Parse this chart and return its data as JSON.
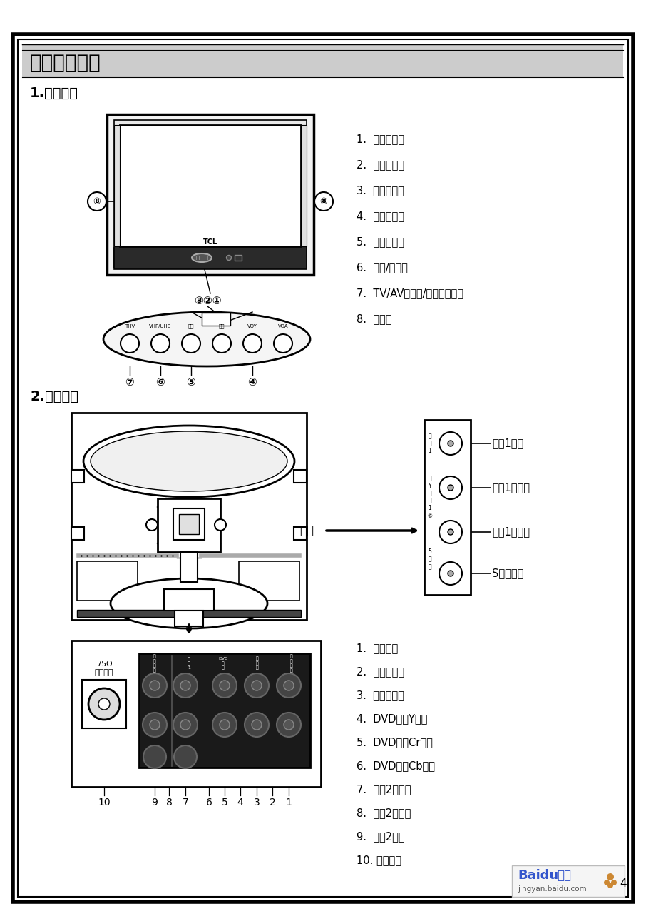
{
  "page_bg": "#ffffff",
  "title_section": "五、外观图解",
  "section1": "1.主机面板",
  "section2": "2.主机背板",
  "panel_labels": [
    "1.  电源开关键",
    "2.  待机指示灯",
    "3.  遥控接收窗",
    "4.  节目选择键",
    "5.  音量选择键",
    "6.  菜单/频台键",
    "7.  TV/AV（电视/视频）选择键",
    "8.  扬声器"
  ],
  "back_labels_side": [
    "视频1输入",
    "音频1左输入",
    "音频1右输入",
    "S端子输入"
  ],
  "back_labels_bottom": [
    "1.  视频输出",
    "2.  音频右输出",
    "3.  音频左输出",
    "4.  DVD分量Y输入",
    "5.  DVD分量Cr输入",
    "6.  DVD分量Cb输入",
    "7.  音频2右输入",
    "8.  音频2左输入",
    "9.  视频2输入",
    "10. 天线输入"
  ],
  "side_label": "侧面",
  "antenna_label": "75Ω\n天线输入",
  "btn_labels": [
    "THV",
    "VHF/UHB",
    "台号",
    "选节",
    "VOY",
    "VOA"
  ],
  "baidu_text": "Baidu 经验",
  "baidu_url": "jingyan.baidu.com",
  "page_num": "4"
}
